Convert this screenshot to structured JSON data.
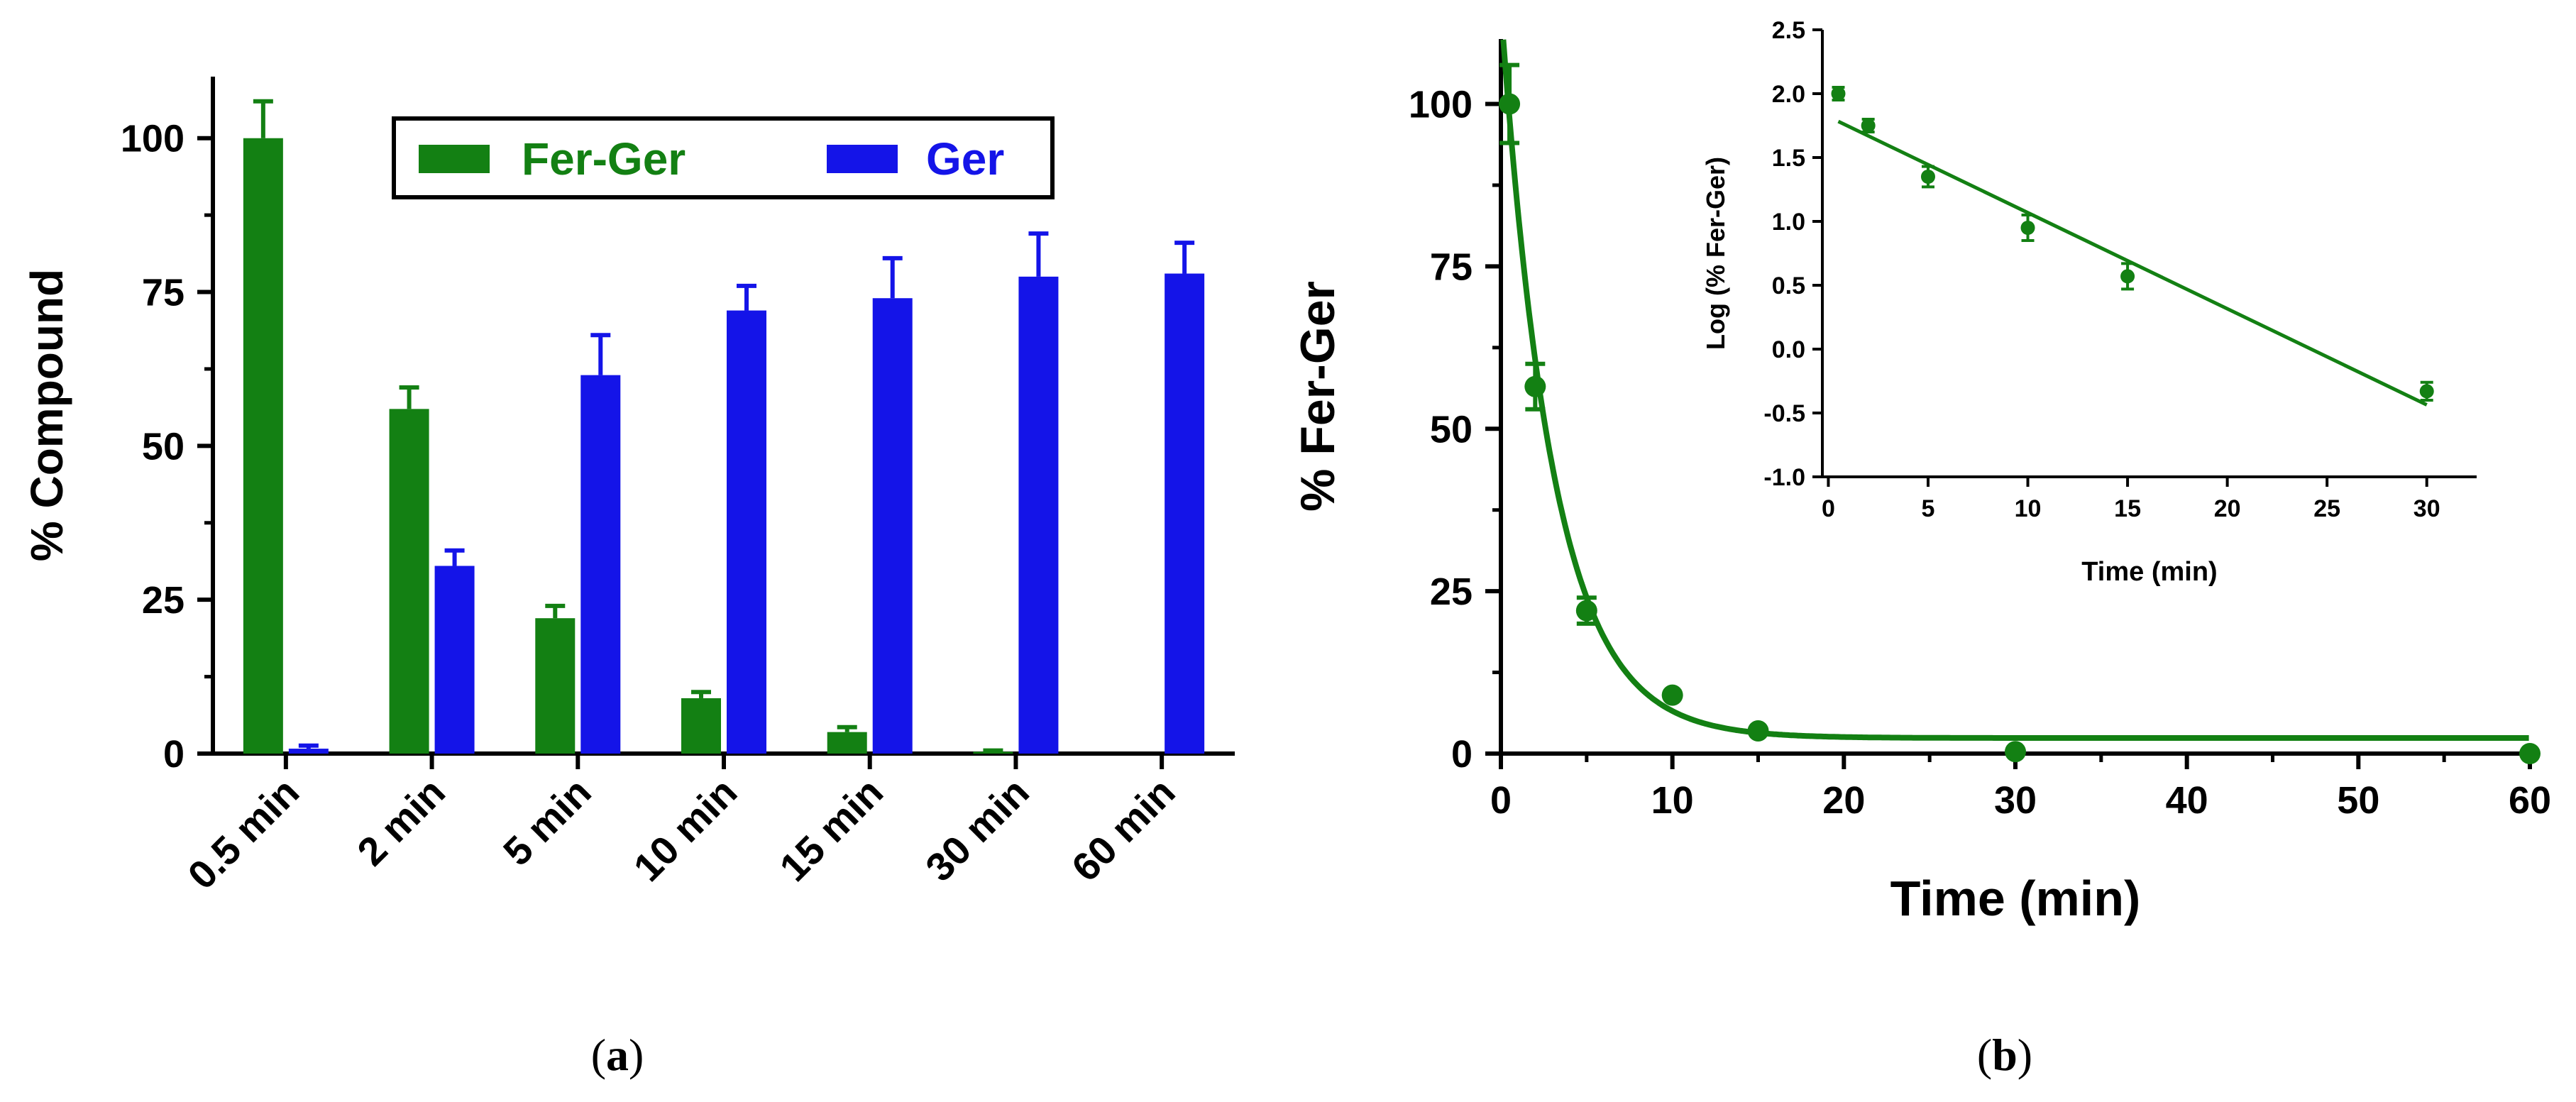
{
  "colors": {
    "fer_ger": "#138013",
    "ger": "#1414E8",
    "axis": "#000000"
  },
  "panel_a": {
    "label": "a",
    "chart_data": {
      "type": "bar",
      "title": "",
      "xlabel": "",
      "ylabel": "% Compound",
      "categories": [
        "0.5 min",
        "2 min",
        "5 min",
        "10 min",
        "15 min",
        "30 min",
        "60 min"
      ],
      "series": [
        {
          "name": "Fer-Ger",
          "color": "#138013",
          "values": [
            100,
            56,
            22,
            9,
            3.5,
            0.3,
            0
          ],
          "errors": [
            6,
            3.5,
            2,
            1,
            0.8,
            0.2,
            0
          ]
        },
        {
          "name": "Ger",
          "color": "#1414E8",
          "values": [
            0.8,
            30.5,
            61.5,
            72,
            74,
            77.5,
            78
          ],
          "errors": [
            0.5,
            2.5,
            6.5,
            4,
            6.5,
            7,
            5
          ]
        }
      ],
      "ylim": [
        0,
        110
      ],
      "yticks": [
        0,
        25,
        50,
        75,
        100
      ],
      "ytick_labels": [
        "0",
        "25",
        "50",
        "75",
        "100"
      ],
      "legend_position": "top-center"
    }
  },
  "panel_b": {
    "label": "b",
    "chart_data": {
      "type": "scatter",
      "title": "",
      "xlabel": "Time (min)",
      "ylabel": "% Fer-Ger",
      "x": [
        0.5,
        2,
        5,
        10,
        15,
        30,
        60
      ],
      "y": [
        100,
        56.5,
        22,
        9,
        3.5,
        0.3,
        0
      ],
      "errors": [
        6,
        3.5,
        2,
        0,
        0,
        0,
        0
      ],
      "fit": {
        "type": "one-phase-decay",
        "y0": 115,
        "plateau": 2.4,
        "k": 0.33
      },
      "xlim": [
        0,
        60
      ],
      "ylim": [
        0,
        110
      ],
      "xticks": [
        0,
        10,
        20,
        30,
        40,
        50,
        60
      ],
      "xtick_labels": [
        "0",
        "10",
        "20",
        "30",
        "40",
        "50",
        "60"
      ],
      "yticks": [
        0,
        25,
        50,
        75,
        100
      ],
      "ytick_labels": [
        "0",
        "25",
        "50",
        "75",
        "100"
      ]
    },
    "inset": {
      "chart_data": {
        "type": "scatter",
        "title": "",
        "xlabel": "Time (min)",
        "ylabel": "Log (% Fer-Ger)",
        "x": [
          0.5,
          2,
          5,
          10,
          15,
          30
        ],
        "y": [
          2.0,
          1.75,
          1.35,
          0.95,
          0.57,
          -0.33
        ],
        "errors": [
          0.05,
          0.05,
          0.08,
          0.1,
          0.1,
          0.07
        ],
        "fit": {
          "type": "linear",
          "slope": -0.0752,
          "intercept": 1.82,
          "x_range": [
            0.5,
            30
          ]
        },
        "xlim": [
          -0.3,
          32.5
        ],
        "ylim": [
          -1.0,
          2.5
        ],
        "xticks": [
          0,
          5,
          10,
          15,
          20,
          25,
          30
        ],
        "xtick_labels": [
          "0",
          "5",
          "10",
          "15",
          "20",
          "25",
          "30"
        ],
        "yticks": [
          -1.0,
          -0.5,
          0.0,
          0.5,
          1.0,
          1.5,
          2.0,
          2.5
        ],
        "ytick_labels": [
          "-1.0",
          "-0.5",
          "0.0",
          "0.5",
          "1.0",
          "1.5",
          "2.0",
          "2.5"
        ]
      }
    }
  }
}
